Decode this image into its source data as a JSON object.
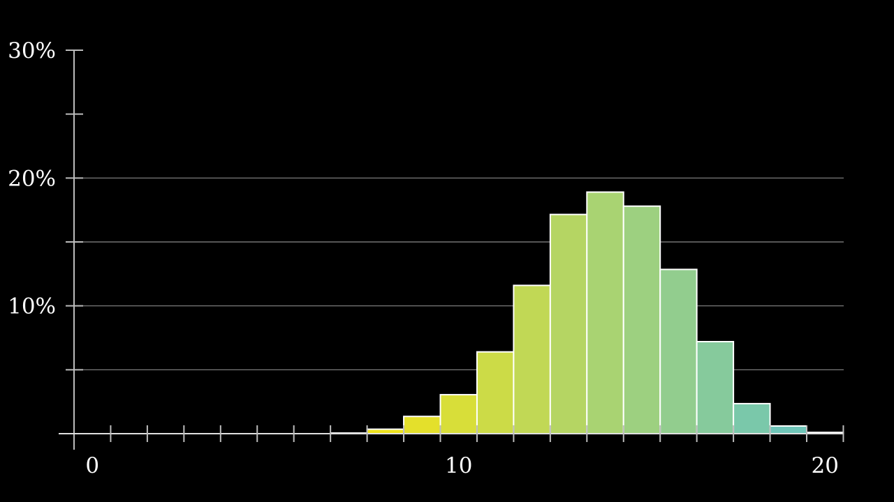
{
  "chart_data": {
    "type": "bar",
    "title": "",
    "xlabel": "",
    "ylabel": "",
    "xlim": [
      0,
      21
    ],
    "ylim": [
      0,
      0.3
    ],
    "grid": true,
    "x": [
      0,
      1,
      2,
      3,
      4,
      5,
      6,
      7,
      8,
      9,
      10,
      11,
      12,
      13,
      14,
      15,
      16,
      17,
      18,
      19,
      20
    ],
    "values": [
      0.0,
      0.0,
      0.0,
      0.0,
      0.0,
      0.0,
      0.0,
      0.0005,
      0.0035,
      0.0135,
      0.0305,
      0.064,
      0.116,
      0.1715,
      0.189,
      0.178,
      0.1285,
      0.072,
      0.0235,
      0.006,
      0.001
    ],
    "colors": [
      "#fbe60f",
      "#63c2c6"
    ],
    "x_tick_labels": [
      {
        "value": 0,
        "label": "0"
      },
      {
        "value": 10,
        "label": "10"
      },
      {
        "value": 20,
        "label": "20"
      }
    ],
    "y_tick_labels": [
      {
        "value": 0.1,
        "label": "10%"
      },
      {
        "value": 0.2,
        "label": "20%"
      },
      {
        "value": 0.3,
        "label": "30%"
      }
    ],
    "gridlines_y": [
      0.05,
      0.1,
      0.15,
      0.2
    ]
  }
}
